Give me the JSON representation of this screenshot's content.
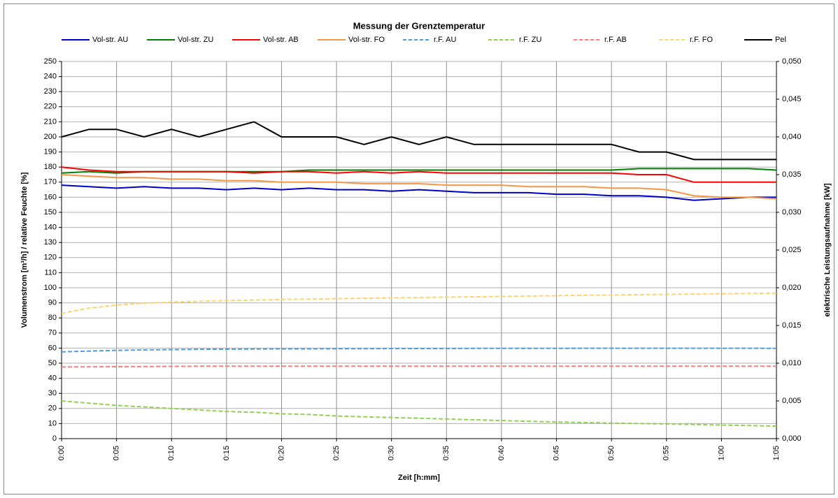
{
  "chart_data": {
    "type": "line",
    "title": "Messung der Grenztemperatur",
    "x_label": "Zeit [h:mm]",
    "y_label": "Volumenstrom [m³/h] / relative Feuchte [%]",
    "y2_label": "elektrische Leistungsaufnahme  [kW]",
    "x": [
      0,
      2.5,
      5,
      7.5,
      10,
      12.5,
      15,
      17.5,
      20,
      22.5,
      25,
      27.5,
      30,
      32.5,
      35,
      37.5,
      40,
      42.5,
      45,
      47.5,
      50,
      52.5,
      55,
      57.5,
      60,
      62.5,
      65
    ],
    "xlim": [
      0,
      65
    ],
    "xticks": [
      {
        "value": 0,
        "label": "0:00"
      },
      {
        "value": 5,
        "label": "0:05"
      },
      {
        "value": 10,
        "label": "0:10"
      },
      {
        "value": 15,
        "label": "0:15"
      },
      {
        "value": 20,
        "label": "0:20"
      },
      {
        "value": 25,
        "label": "0:25"
      },
      {
        "value": 30,
        "label": "0:30"
      },
      {
        "value": 35,
        "label": "0:35"
      },
      {
        "value": 40,
        "label": "0:40"
      },
      {
        "value": 45,
        "label": "0:45"
      },
      {
        "value": 50,
        "label": "0:50"
      },
      {
        "value": 55,
        "label": "0:55"
      },
      {
        "value": 60,
        "label": "1:00"
      },
      {
        "value": 65,
        "label": "1:05"
      }
    ],
    "ylim": [
      0,
      250
    ],
    "yticks": [
      0,
      10,
      20,
      30,
      40,
      50,
      60,
      70,
      80,
      90,
      100,
      110,
      120,
      130,
      140,
      150,
      160,
      170,
      180,
      190,
      200,
      210,
      220,
      230,
      240,
      250
    ],
    "y2lim": [
      0,
      0.05
    ],
    "y2ticks": [
      {
        "value": 0,
        "label": "0,000"
      },
      {
        "value": 0.005,
        "label": "0,005"
      },
      {
        "value": 0.01,
        "label": "0,010"
      },
      {
        "value": 0.015,
        "label": "0,015"
      },
      {
        "value": 0.02,
        "label": "0,020"
      },
      {
        "value": 0.025,
        "label": "0,025"
      },
      {
        "value": 0.03,
        "label": "0,030"
      },
      {
        "value": 0.035,
        "label": "0,035"
      },
      {
        "value": 0.04,
        "label": "0,040"
      },
      {
        "value": 0.045,
        "label": "0,045"
      },
      {
        "value": 0.05,
        "label": "0,050"
      }
    ],
    "grid": true,
    "legend": "top",
    "series": [
      {
        "name": "Vol-str. AU",
        "color": "#0000cc",
        "dash": false,
        "values": [
          168,
          167,
          166,
          167,
          166,
          166,
          165,
          166,
          165,
          166,
          165,
          165,
          164,
          165,
          164,
          163,
          163,
          163,
          162,
          162,
          161,
          161,
          160,
          158,
          159,
          160,
          160
        ]
      },
      {
        "name": "Vol-str. ZU",
        "color": "#007f00",
        "dash": false,
        "values": [
          176,
          177,
          176,
          177,
          177,
          177,
          177,
          177,
          177,
          178,
          178,
          178,
          178,
          178,
          178,
          178,
          178,
          178,
          178,
          178,
          178,
          179,
          179,
          179,
          179,
          179,
          178
        ]
      },
      {
        "name": "Vol-str. AB",
        "color": "#ff0000",
        "dash": false,
        "values": [
          180,
          178,
          177,
          177,
          177,
          177,
          177,
          176,
          177,
          177,
          176,
          177,
          176,
          177,
          176,
          176,
          176,
          176,
          176,
          176,
          176,
          175,
          175,
          170,
          170,
          170,
          170
        ]
      },
      {
        "name": "Vol-str. FO",
        "color": "#f79646",
        "dash": false,
        "values": [
          175,
          174,
          173,
          173,
          172,
          172,
          171,
          171,
          170,
          170,
          170,
          169,
          169,
          169,
          168,
          168,
          168,
          167,
          167,
          167,
          166,
          166,
          165,
          161,
          160,
          160,
          159
        ]
      },
      {
        "name": "r.F. AU",
        "color": "#4f9de0",
        "dash": true,
        "values": [
          57.5,
          58,
          58.5,
          58.8,
          59,
          59.2,
          59.3,
          59.4,
          59.5,
          59.5,
          59.6,
          59.6,
          59.7,
          59.7,
          59.7,
          59.8,
          59.8,
          59.8,
          59.8,
          59.9,
          59.9,
          59.9,
          59.9,
          59.9,
          59.9,
          59.9,
          59.8
        ]
      },
      {
        "name": "r.F. ZU",
        "color": "#92d050",
        "dash": true,
        "values": [
          25,
          23.5,
          22,
          21,
          20,
          19,
          18,
          17.5,
          16.5,
          16,
          15,
          14.5,
          14,
          13.5,
          13,
          12.5,
          12,
          11.5,
          11,
          10.7,
          10.3,
          10,
          9.7,
          9.4,
          9,
          8.7,
          8.3
        ]
      },
      {
        "name": "r.F. AB",
        "color": "#ff7c80",
        "dash": true,
        "values": [
          47.5,
          47.6,
          47.7,
          47.8,
          47.9,
          48,
          48,
          48,
          48,
          48,
          48,
          48,
          48,
          48,
          48,
          48,
          48,
          48,
          48,
          48,
          48,
          48,
          48,
          48,
          48,
          48,
          48
        ]
      },
      {
        "name": "r.F. FO",
        "color": "#fcd56c",
        "dash": true,
        "values": [
          83,
          86.5,
          88.5,
          89.8,
          90.5,
          91,
          91.5,
          91.8,
          92.2,
          92.5,
          92.8,
          93,
          93.3,
          93.5,
          93.8,
          94,
          94.2,
          94.5,
          94.7,
          95,
          95.2,
          95.4,
          95.6,
          95.8,
          96,
          96.2,
          96.4
        ]
      },
      {
        "name": "Pel",
        "color": "#000000",
        "dash": false,
        "axis": "y2",
        "values": [
          0.04,
          0.041,
          0.041,
          0.04,
          0.041,
          0.04,
          0.041,
          0.042,
          0.04,
          0.04,
          0.04,
          0.039,
          0.04,
          0.039,
          0.04,
          0.039,
          0.039,
          0.039,
          0.039,
          0.039,
          0.039,
          0.038,
          0.038,
          0.037,
          0.037,
          0.037,
          0.037
        ]
      }
    ]
  }
}
